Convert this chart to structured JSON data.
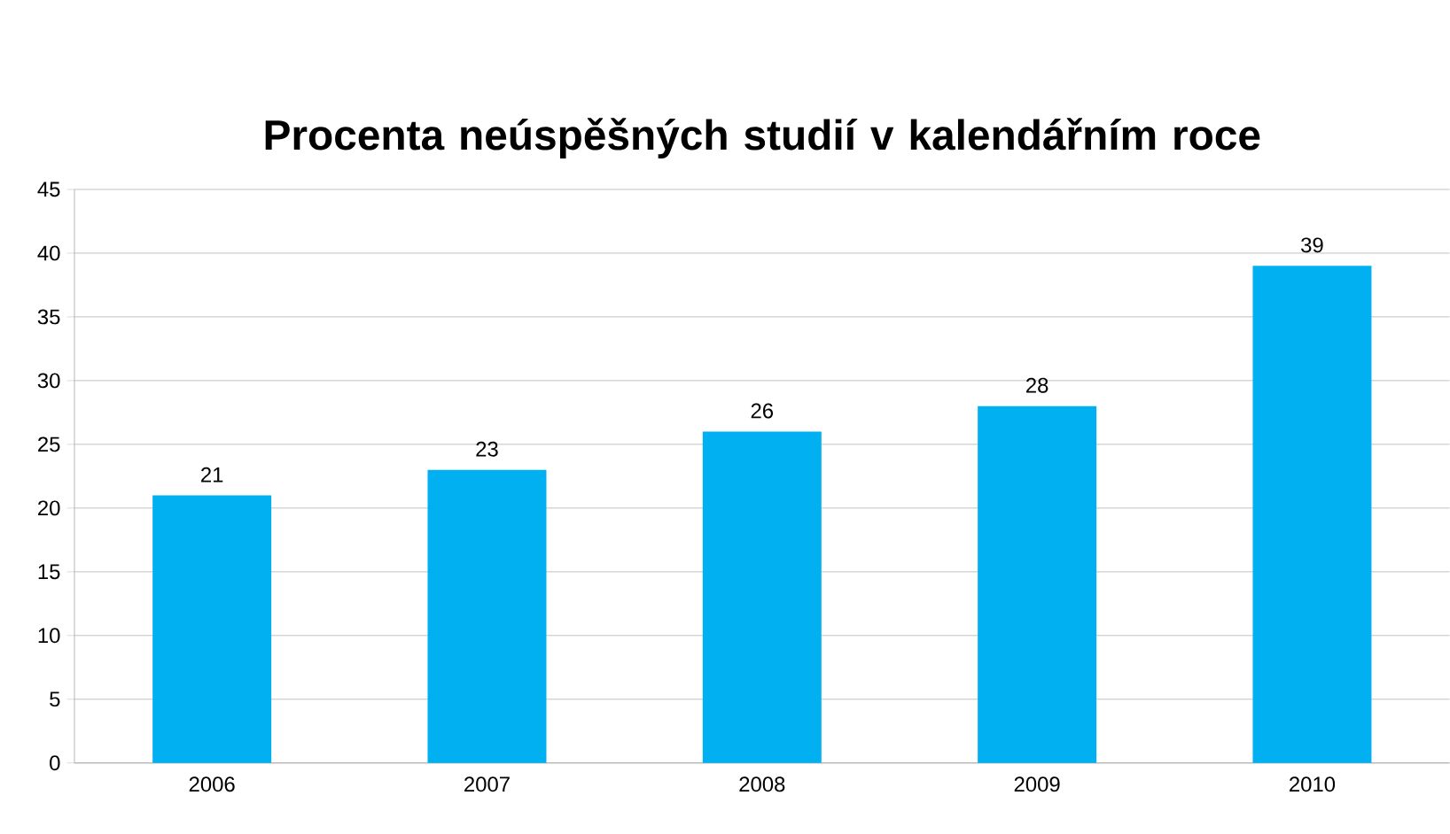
{
  "chart_data": {
    "type": "bar",
    "title": "Procenta neúspěšných studií v kalendářním roce",
    "categories": [
      "2006",
      "2007",
      "2008",
      "2009",
      "2010"
    ],
    "values": [
      21,
      23,
      26,
      28,
      39
    ],
    "color": "#00b0f0",
    "ylim": [
      0,
      45
    ],
    "yticks": [
      0,
      5,
      10,
      15,
      20,
      25,
      30,
      35,
      40,
      45
    ],
    "grid": "y",
    "data_labels": true
  }
}
